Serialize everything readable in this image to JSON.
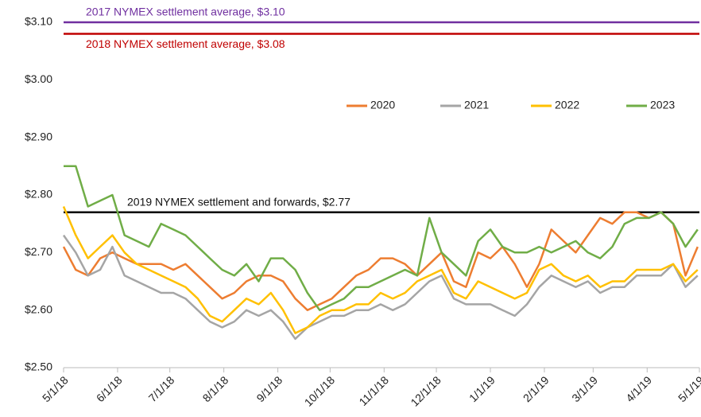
{
  "chart_data": {
    "type": "line",
    "x": [
      "5/1/18",
      "5/8/18",
      "5/15/18",
      "5/22/18",
      "5/29/18",
      "6/5/18",
      "6/12/18",
      "6/19/18",
      "6/26/18",
      "7/3/18",
      "7/10/18",
      "7/17/18",
      "7/24/18",
      "7/31/18",
      "8/7/18",
      "8/14/18",
      "8/21/18",
      "8/28/18",
      "9/4/18",
      "9/11/18",
      "9/18/18",
      "9/25/18",
      "10/2/18",
      "10/9/18",
      "10/16/18",
      "10/23/18",
      "10/30/18",
      "11/6/18",
      "11/13/18",
      "11/20/18",
      "11/27/18",
      "12/4/18",
      "12/11/18",
      "12/18/18",
      "12/25/18",
      "1/1/19",
      "1/8/19",
      "1/15/19",
      "1/22/19",
      "1/29/19",
      "2/5/19",
      "2/12/19",
      "2/19/19",
      "2/26/19",
      "3/5/19",
      "3/12/19",
      "3/19/19",
      "3/26/19",
      "4/2/19",
      "4/9/19",
      "4/16/19",
      "4/23/19",
      "4/30/19"
    ],
    "series": [
      {
        "name": "2020",
        "color": "#ed7d31",
        "values": [
          2.71,
          2.67,
          2.66,
          2.69,
          2.7,
          2.69,
          2.68,
          2.68,
          2.68,
          2.67,
          2.68,
          2.66,
          2.64,
          2.62,
          2.63,
          2.65,
          2.66,
          2.66,
          2.65,
          2.62,
          2.6,
          2.61,
          2.62,
          2.64,
          2.66,
          2.67,
          2.69,
          2.69,
          2.68,
          2.66,
          2.68,
          2.7,
          2.65,
          2.64,
          2.7,
          2.69,
          2.71,
          2.68,
          2.64,
          2.68,
          2.74,
          2.72,
          2.7,
          2.73,
          2.76,
          2.75,
          2.77,
          2.77,
          2.76,
          2.77,
          2.75,
          2.66,
          2.71
        ]
      },
      {
        "name": "2021",
        "color": "#a5a5a5",
        "values": [
          2.73,
          2.7,
          2.66,
          2.67,
          2.71,
          2.66,
          2.65,
          2.64,
          2.63,
          2.63,
          2.62,
          2.6,
          2.58,
          2.57,
          2.58,
          2.6,
          2.59,
          2.6,
          2.58,
          2.55,
          2.57,
          2.58,
          2.59,
          2.59,
          2.6,
          2.6,
          2.61,
          2.6,
          2.61,
          2.63,
          2.65,
          2.66,
          2.62,
          2.61,
          2.61,
          2.61,
          2.6,
          2.59,
          2.61,
          2.64,
          2.66,
          2.65,
          2.64,
          2.65,
          2.63,
          2.64,
          2.64,
          2.66,
          2.66,
          2.66,
          2.68,
          2.64,
          2.66
        ]
      },
      {
        "name": "2022",
        "color": "#ffc000",
        "values": [
          2.78,
          2.73,
          2.69,
          2.71,
          2.73,
          2.7,
          2.68,
          2.67,
          2.66,
          2.65,
          2.64,
          2.62,
          2.59,
          2.58,
          2.6,
          2.62,
          2.61,
          2.63,
          2.6,
          2.56,
          2.57,
          2.59,
          2.6,
          2.6,
          2.61,
          2.61,
          2.63,
          2.62,
          2.63,
          2.65,
          2.66,
          2.67,
          2.63,
          2.62,
          2.65,
          2.64,
          2.63,
          2.62,
          2.63,
          2.67,
          2.68,
          2.66,
          2.65,
          2.66,
          2.64,
          2.65,
          2.65,
          2.67,
          2.67,
          2.67,
          2.68,
          2.65,
          2.67
        ]
      },
      {
        "name": "2023",
        "color": "#70ad47",
        "values": [
          2.85,
          2.85,
          2.78,
          2.79,
          2.8,
          2.73,
          2.72,
          2.71,
          2.75,
          2.74,
          2.73,
          2.71,
          2.69,
          2.67,
          2.66,
          2.68,
          2.65,
          2.69,
          2.69,
          2.67,
          2.63,
          2.6,
          2.61,
          2.62,
          2.64,
          2.64,
          2.65,
          2.66,
          2.67,
          2.66,
          2.76,
          2.7,
          2.68,
          2.66,
          2.72,
          2.74,
          2.71,
          2.7,
          2.7,
          2.71,
          2.7,
          2.71,
          2.72,
          2.7,
          2.69,
          2.71,
          2.75,
          2.76,
          2.76,
          2.77,
          2.75,
          2.71,
          2.74
        ]
      }
    ],
    "reference_lines": [
      {
        "label": "2017 NYMEX settlement average, $3.10",
        "value": 3.1,
        "color": "#7030a0"
      },
      {
        "label": "2018 NYMEX settlement average, $3.08",
        "value": 3.08,
        "color": "#c00000"
      },
      {
        "label": "2019 NYMEX settlement and forwards, $2.77",
        "value": 2.77,
        "color": "#000000"
      }
    ],
    "xlim": [
      "5/1/18",
      "5/1/19"
    ],
    "xticks": [
      "5/1/18",
      "6/1/18",
      "7/1/18",
      "8/1/18",
      "9/1/18",
      "10/1/18",
      "11/1/18",
      "12/1/18",
      "1/1/19",
      "2/1/19",
      "3/1/19",
      "4/1/19",
      "5/1/19"
    ],
    "ylim": [
      2.5,
      3.1
    ],
    "yticks": [
      {
        "value": 2.5,
        "label": "$2.50"
      },
      {
        "value": 2.6,
        "label": "$2.60"
      },
      {
        "value": 2.7,
        "label": "$2.70"
      },
      {
        "value": 2.8,
        "label": "$2.80"
      },
      {
        "value": 2.9,
        "label": "$2.90"
      },
      {
        "value": 3.0,
        "label": "$3.00"
      },
      {
        "value": 3.1,
        "label": "$3.10"
      }
    ],
    "grid": false,
    "legend": "top-right"
  }
}
